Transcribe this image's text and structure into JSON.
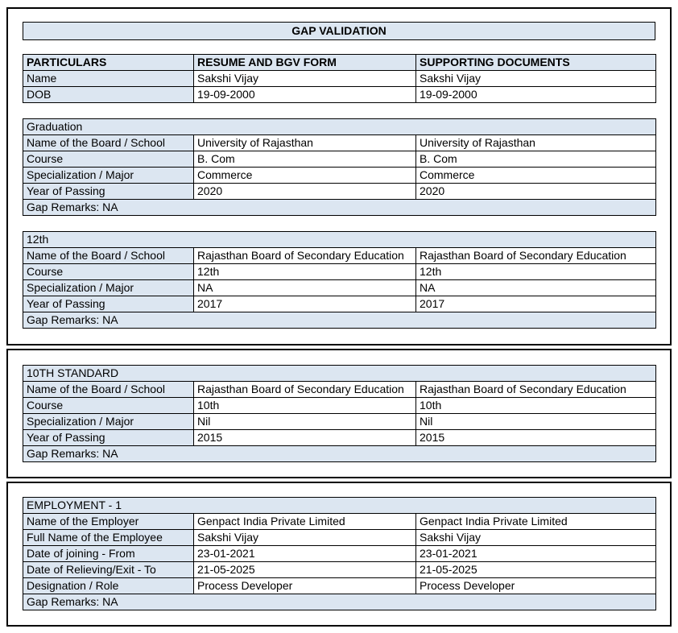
{
  "title": "GAP VALIDATION",
  "colors": {
    "shade": "#dce6f1",
    "border": "#000000",
    "text": "#000000"
  },
  "particulars_table": {
    "headers": [
      "PARTICULARS",
      "RESUME AND BGV FORM",
      "SUPPORTING DOCUMENTS"
    ],
    "rows": [
      {
        "label": "Name",
        "resume": "Sakshi Vijay",
        "supporting": "Sakshi Vijay"
      },
      {
        "label": "DOB",
        "resume": "19-09-2000",
        "supporting": "19-09-2000"
      }
    ]
  },
  "sections": [
    {
      "title": "Graduation",
      "rows": [
        {
          "label": "Name of the Board / School",
          "resume": "University of Rajasthan",
          "supporting": "University of Rajasthan"
        },
        {
          "label": "Course",
          "resume": "B. Com",
          "supporting": "B. Com"
        },
        {
          "label": "Specialization / Major",
          "resume": "Commerce",
          "supporting": "Commerce"
        },
        {
          "label": "Year of Passing",
          "resume": "2020",
          "supporting": "2020"
        }
      ],
      "gap_remarks": "Gap Remarks: NA"
    },
    {
      "title": "12th",
      "rows": [
        {
          "label": "Name of the Board / School",
          "resume": "Rajasthan Board of Secondary Education",
          "supporting": "Rajasthan Board of Secondary Education"
        },
        {
          "label": "Course",
          "resume": "12th",
          "supporting": "12th"
        },
        {
          "label": "Specialization / Major",
          "resume": "NA",
          "supporting": "NA"
        },
        {
          "label": "Year of Passing",
          "resume": "2017",
          "supporting": "2017"
        }
      ],
      "gap_remarks": "Gap Remarks: NA"
    },
    {
      "title": "10TH STANDARD",
      "rows": [
        {
          "label": "Name of the Board / School",
          "resume": "Rajasthan Board of Secondary Education",
          "supporting": "Rajasthan Board of Secondary Education"
        },
        {
          "label": "Course",
          "resume": "10th",
          "supporting": "10th"
        },
        {
          "label": "Specialization / Major",
          "resume": "Nil",
          "supporting": "Nil"
        },
        {
          "label": "Year of Passing",
          "resume": "2015",
          "supporting": "2015"
        }
      ],
      "gap_remarks": "Gap Remarks: NA"
    },
    {
      "title": "EMPLOYMENT - 1",
      "rows": [
        {
          "label": "Name of the Employer",
          "resume": "Genpact India Private Limited",
          "supporting": "Genpact India Private Limited"
        },
        {
          "label": "Full Name of the Employee",
          "resume": "Sakshi Vijay",
          "supporting": "Sakshi Vijay"
        },
        {
          "label": "Date of joining - From",
          "resume": "23-01-2021",
          "supporting": "23-01-2021"
        },
        {
          "label": "Date of Relieving/Exit - To",
          "resume": "21-05-2025",
          "supporting": "21-05-2025"
        },
        {
          "label": "Designation / Role",
          "resume": "Process Developer",
          "supporting": "Process Developer"
        }
      ],
      "gap_remarks": "Gap Remarks: NA"
    }
  ]
}
